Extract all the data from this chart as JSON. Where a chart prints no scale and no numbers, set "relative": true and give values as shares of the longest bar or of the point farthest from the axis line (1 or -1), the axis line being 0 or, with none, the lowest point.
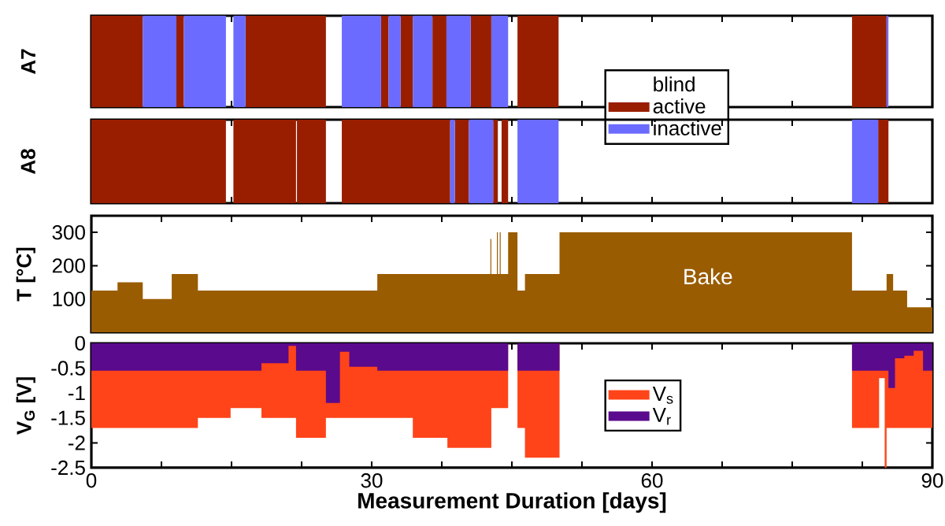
{
  "chart_data": [
    {
      "type": "area",
      "relative": true,
      "ylabel": "A7",
      "xlim": [
        0,
        90
      ],
      "xticks": [
        0,
        {
          "value": 7.5,
          "label": null
        },
        {
          "value": 15,
          "label": null
        },
        {
          "value": 22.5,
          "label": null
        },
        30,
        {
          "value": 37.5,
          "label": null
        },
        {
          "value": 45,
          "label": null
        },
        {
          "value": 52.5,
          "label": null
        },
        60,
        {
          "value": 67.5,
          "label": null
        },
        {
          "value": 75,
          "label": null
        },
        {
          "value": 82.5,
          "label": null
        },
        90
      ],
      "tick_labels": false,
      "legend": "bottom right",
      "legend_title": "blind",
      "series": [
        {
          "name": "active",
          "color": "#991e00",
          "x": [
            0,
            0,
            5.5,
            5.5,
            9.1,
            9.1,
            9.9,
            9.9,
            16.5,
            16.5,
            25.1,
            25.1,
            31,
            31,
            31.8,
            31.8,
            33.1,
            33.1,
            34.4,
            34.4,
            36.5,
            36.5,
            38,
            38,
            40.6,
            40.6,
            42.8,
            42.8,
            45.6,
            45.6,
            50,
            50,
            81.4,
            81.4,
            85.1,
            85.1
          ],
          "values": [
            0,
            1,
            1,
            0,
            0,
            1,
            1,
            0,
            0,
            1,
            1,
            0,
            0,
            1,
            1,
            0,
            0,
            1,
            1,
            0,
            0,
            1,
            1,
            0,
            0,
            1,
            1,
            0,
            0,
            1,
            1,
            0,
            0,
            1,
            1,
            0
          ]
        },
        {
          "name": "inactive",
          "color": "#6b6bff",
          "x": [
            5.5,
            5.5,
            9.1,
            9.1,
            9.9,
            9.9,
            14.4,
            14.4,
            15.2,
            15.2,
            16.5,
            16.5,
            26.8,
            26.8,
            31,
            31,
            31.8,
            31.8,
            33.1,
            33.1,
            34.4,
            34.4,
            36.5,
            36.5,
            38,
            38,
            40.6,
            40.6,
            42.8,
            42.8,
            44.6,
            44.6,
            85.1,
            85.1,
            85.3,
            85.3
          ],
          "values": [
            0,
            1,
            1,
            0,
            0,
            1,
            1,
            0,
            0,
            1,
            1,
            0,
            0,
            1,
            1,
            0,
            0,
            1,
            1,
            0,
            0,
            1,
            1,
            0,
            0,
            1,
            1,
            0,
            0,
            1,
            1,
            0,
            0,
            1,
            1,
            0
          ]
        }
      ]
    },
    {
      "type": "area",
      "relative": true,
      "ylabel": "A8",
      "xlim": [
        0,
        90
      ],
      "xticks": [
        0,
        {
          "value": 7.5,
          "label": null
        },
        {
          "value": 15,
          "label": null
        },
        {
          "value": 22.5,
          "label": null
        },
        30,
        {
          "value": 37.5,
          "label": null
        },
        {
          "value": 45,
          "label": null
        },
        {
          "value": 52.5,
          "label": null
        },
        60,
        {
          "value": 67.5,
          "label": null
        },
        {
          "value": 75,
          "label": null
        },
        {
          "value": 82.5,
          "label": null
        },
        90
      ],
      "tick_labels": false,
      "series": [
        {
          "color": "#991e00",
          "x": [
            0,
            0,
            14.4,
            14.4,
            15.2,
            15.2,
            21.9,
            21.9,
            22,
            22,
            25.1,
            25.1,
            26.8,
            26.8,
            38.4,
            38.4,
            38.9,
            38.9,
            40.4,
            40.4,
            43,
            43,
            43.5,
            43.5,
            43.9,
            43.9,
            44.6,
            44.6,
            84.2,
            84.2,
            85.3,
            85.3
          ],
          "values": [
            0,
            1,
            1,
            0,
            0,
            1,
            1,
            0,
            0,
            1,
            1,
            0,
            0,
            1,
            1,
            0,
            0,
            1,
            1,
            0,
            0,
            1,
            1,
            0,
            0,
            1,
            1,
            0,
            0,
            1,
            1,
            0
          ]
        },
        {
          "color": "#6b6bff",
          "x": [
            38.4,
            38.4,
            38.9,
            38.9,
            40.4,
            40.4,
            43,
            43,
            45.6,
            45.6,
            50,
            50,
            81.4,
            81.4,
            84.2,
            84.2
          ],
          "values": [
            0,
            1,
            1,
            0,
            0,
            1,
            1,
            0,
            0,
            1,
            1,
            0,
            0,
            1,
            1,
            0
          ]
        }
      ]
    },
    {
      "type": "area",
      "ylabel": "T [°C]",
      "xlim": [
        0,
        90
      ],
      "ylim": [
        0,
        350
      ],
      "yticks": [
        100,
        200,
        300
      ],
      "xticks": [
        0,
        {
          "value": 7.5,
          "label": null
        },
        {
          "value": 15,
          "label": null
        },
        {
          "value": 22.5,
          "label": null
        },
        30,
        {
          "value": 37.5,
          "label": null
        },
        {
          "value": 45,
          "label": null
        },
        {
          "value": 52.5,
          "label": null
        },
        60,
        {
          "value": 67.5,
          "label": null
        },
        {
          "value": 75,
          "label": null
        },
        {
          "value": 82.5,
          "label": null
        },
        90
      ],
      "tick_labels": "y",
      "annotations": [
        "Bake"
      ],
      "series": [
        {
          "color": "#9a5c00",
          "x": [
            0,
            0,
            2.8,
            2.8,
            5.5,
            5.5,
            8.6,
            8.6,
            11.4,
            11.4,
            30.6,
            30.6,
            42.7,
            42.7,
            42.8,
            42.8,
            43.4,
            43.4,
            43.5,
            43.5,
            43.7,
            43.7,
            43.8,
            43.8,
            44.6,
            44.6,
            45.6,
            45.6,
            46.4,
            46.4,
            50.1,
            50.1,
            81.4,
            81.4,
            85.1,
            85.1,
            85.8,
            85.8,
            87.3,
            87.3,
            90,
            90
          ],
          "values": [
            0,
            125,
            125,
            150,
            150,
            100,
            100,
            175,
            175,
            125,
            125,
            175,
            175,
            280,
            280,
            175,
            175,
            300,
            300,
            175,
            175,
            300,
            300,
            175,
            175,
            300,
            300,
            125,
            125,
            175,
            175,
            300,
            300,
            125,
            125,
            175,
            175,
            125,
            125,
            75,
            75,
            0
          ]
        }
      ]
    },
    {
      "type": "area",
      "ylabel": "V$_{G}$ [V]",
      "xlabel": "Measurement Duration  [days]",
      "xlim": [
        0,
        90
      ],
      "ylim": [
        -2.5,
        0
      ],
      "yticks": [
        0,
        -0.5,
        -1,
        -1.5,
        -2,
        -2.5
      ],
      "xticks": [
        0,
        {
          "value": 7.5,
          "label": null
        },
        {
          "value": 15,
          "label": null
        },
        {
          "value": 22.5,
          "label": null
        },
        30,
        {
          "value": 37.5,
          "label": null
        },
        {
          "value": 45,
          "label": null
        },
        {
          "value": 52.5,
          "label": null
        },
        60,
        {
          "value": 67.5,
          "label": null
        },
        {
          "value": 75,
          "label": null
        },
        {
          "value": 82.5,
          "label": null
        },
        90
      ],
      "legend": "right",
      "series": [
        {
          "name": "V$_{s}$",
          "color": "#ff4419",
          "x": [
            0,
            0,
            11.4,
            11.4,
            14.9,
            14.9,
            18.2,
            18.2,
            21.9,
            21.9,
            25.1,
            25.1,
            34.4,
            34.4,
            38.1,
            38.1,
            42.8,
            42.8,
            44.6,
            44.6,
            45.1,
            45.6,
            45.6,
            46.4,
            46.4,
            50.1,
            50.1,
            65,
            81.4,
            81.4,
            84.3,
            84.3,
            84.9,
            84.9,
            85.1,
            85.1,
            90,
            90
          ],
          "values": [
            0,
            -1.7,
            -1.7,
            -1.5,
            -1.5,
            -1.3,
            -1.3,
            -1.5,
            -1.5,
            -1.9,
            -1.9,
            -1.5,
            -1.5,
            -1.9,
            -1.9,
            -2.1,
            -2.1,
            -1.3,
            -1.3,
            0,
            null,
            0,
            -1.7,
            -1.7,
            -2.3,
            -2.3,
            0,
            null,
            0,
            -1.7,
            -1.7,
            -0.7,
            -0.7,
            -2.5,
            -2.5,
            -1.7,
            -1.7,
            0
          ]
        },
        {
          "name": "V$_{r}$",
          "color": "#5a0a8c",
          "x": [
            0,
            0,
            18.2,
            18.2,
            21.1,
            21.1,
            21.9,
            21.9,
            25.1,
            25.1,
            26.6,
            26.6,
            27.6,
            27.6,
            30.6,
            30.6,
            44.6,
            44.6,
            45.1,
            45.6,
            45.6,
            50.1,
            50.1,
            65,
            81.4,
            81.4,
            85.3,
            85.3,
            86,
            86,
            87,
            87,
            88,
            88,
            89,
            89,
            90,
            90
          ],
          "values": [
            0,
            -0.55,
            -0.55,
            -0.4,
            -0.4,
            -0.05,
            -0.05,
            -0.55,
            -0.55,
            -1.2,
            -1.2,
            -0.17,
            -0.17,
            -0.47,
            -0.47,
            -0.55,
            -0.55,
            0,
            null,
            0,
            -0.55,
            -0.55,
            0,
            null,
            0,
            -0.55,
            -0.55,
            -0.9,
            -0.9,
            -0.3,
            -0.3,
            -0.25,
            -0.25,
            -0.15,
            -0.15,
            -0.55,
            -0.55,
            0
          ]
        }
      ]
    }
  ]
}
